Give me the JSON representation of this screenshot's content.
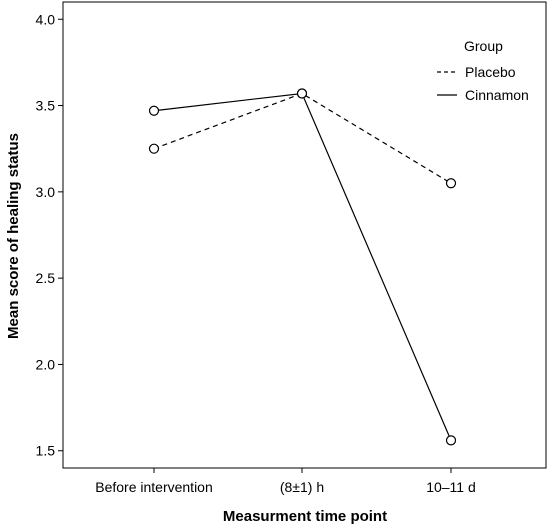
{
  "chart_data": {
    "type": "line",
    "title": "",
    "xlabel": "Measurment time point",
    "ylabel": "Mean score of healing status",
    "categories": [
      "Before intervention",
      "(8±1) h",
      "10–11 d"
    ],
    "yticks": [
      "1.5",
      "2.0",
      "2.5",
      "3.0",
      "3.5",
      "4.0"
    ],
    "ylim": [
      1.4,
      4.1
    ],
    "legend": {
      "title": "Group",
      "placement": "top-right"
    },
    "series": [
      {
        "name": "Placebo",
        "values": [
          3.25,
          3.57,
          3.05
        ],
        "line_style": "dashed",
        "color": "#000000"
      },
      {
        "name": "Cinnamon",
        "values": [
          3.47,
          3.57,
          1.56
        ],
        "line_style": "solid",
        "color": "#000000"
      }
    ],
    "grid": false,
    "marker": "open-circle"
  }
}
